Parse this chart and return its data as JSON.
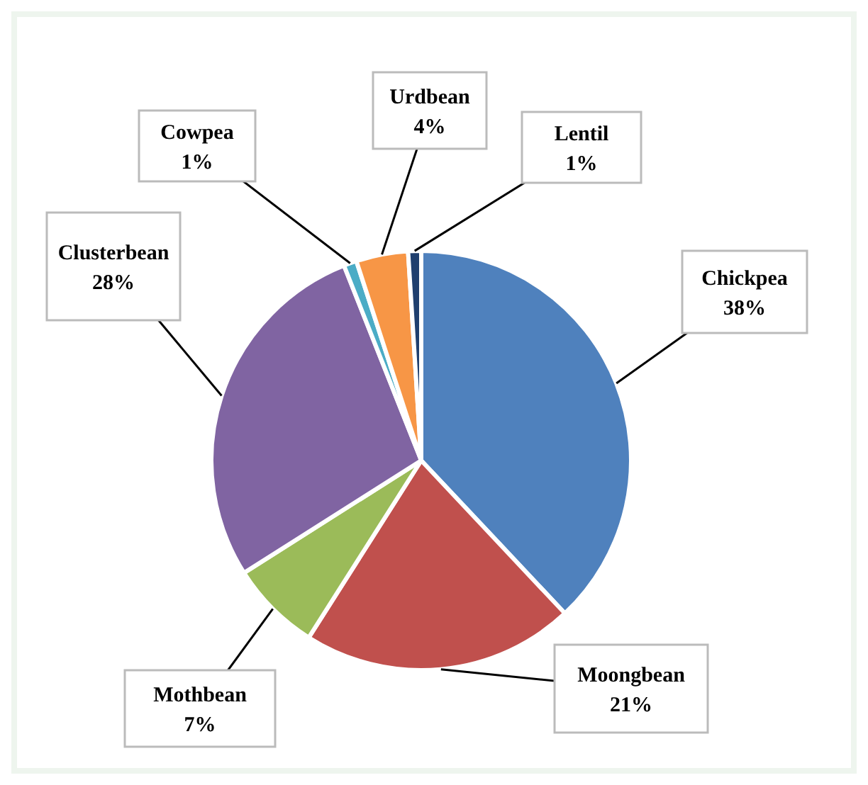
{
  "chart_data": {
    "type": "pie",
    "categories": [
      "Chickpea",
      "Moongbean",
      "Mothbean",
      "Clusterbean",
      "Cowpea",
      "Urdbean",
      "Lentil"
    ],
    "values": [
      38,
      21,
      7,
      28,
      1,
      4,
      1
    ],
    "value_labels": [
      "38%",
      "21%",
      "7%",
      "28%",
      "1%",
      "4%",
      "1%"
    ],
    "colors": [
      "#4f81bd",
      "#c0504d",
      "#9bbb59",
      "#8064a2",
      "#4bacc6",
      "#f79646",
      "#1f3f6e"
    ],
    "legend": false
  }
}
